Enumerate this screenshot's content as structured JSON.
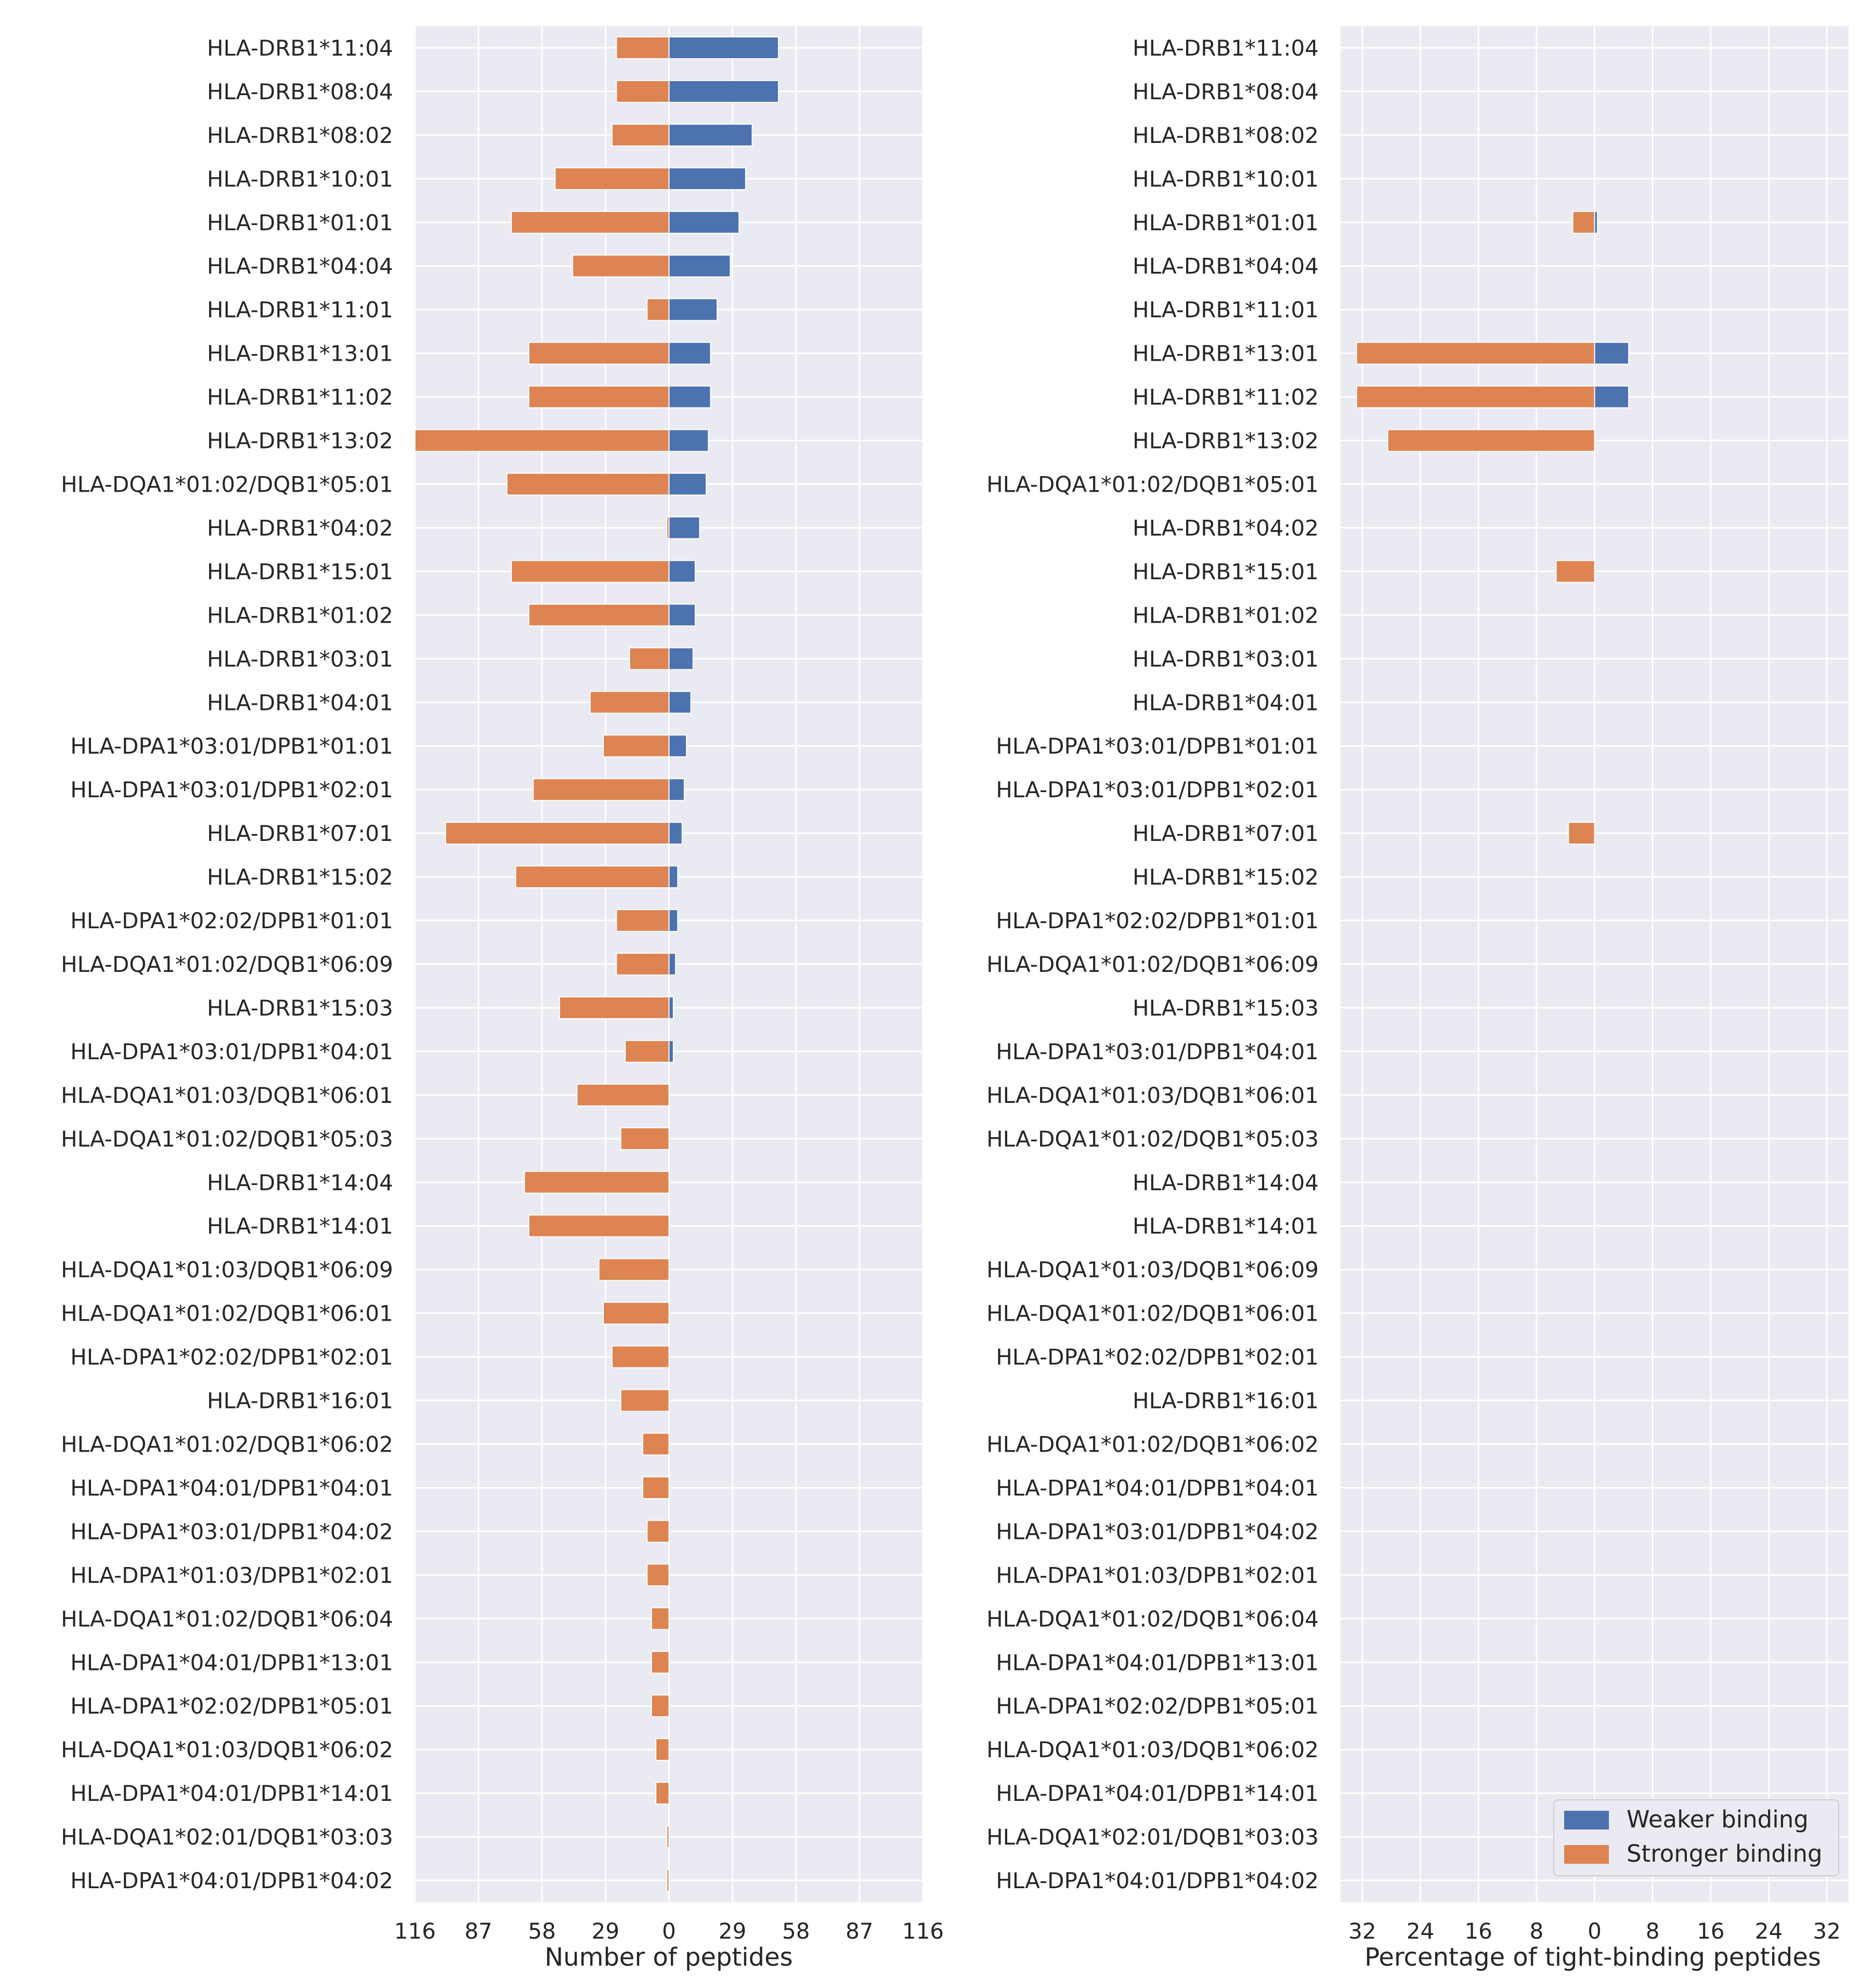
{
  "chart_data": [
    {
      "type": "bar",
      "orientation": "horizontal-diverging",
      "xlabel": "Number of peptides",
      "xticks": [
        "116",
        "87",
        "58",
        "29",
        "0",
        "29",
        "58",
        "87",
        "116"
      ],
      "xlim": [
        -116,
        116
      ],
      "grid": true,
      "categories": [
        "HLA-DRB1*11:04",
        "HLA-DRB1*08:04",
        "HLA-DRB1*08:02",
        "HLA-DRB1*10:01",
        "HLA-DRB1*01:01",
        "HLA-DRB1*04:04",
        "HLA-DRB1*11:01",
        "HLA-DRB1*13:01",
        "HLA-DRB1*11:02",
        "HLA-DRB1*13:02",
        "HLA-DQA1*01:02/DQB1*05:01",
        "HLA-DRB1*04:02",
        "HLA-DRB1*15:01",
        "HLA-DRB1*01:02",
        "HLA-DRB1*03:01",
        "HLA-DRB1*04:01",
        "HLA-DPA1*03:01/DPB1*01:01",
        "HLA-DPA1*03:01/DPB1*02:01",
        "HLA-DRB1*07:01",
        "HLA-DRB1*15:02",
        "HLA-DPA1*02:02/DPB1*01:01",
        "HLA-DQA1*01:02/DQB1*06:09",
        "HLA-DRB1*15:03",
        "HLA-DPA1*03:01/DPB1*04:01",
        "HLA-DQA1*01:03/DQB1*06:01",
        "HLA-DQA1*01:02/DQB1*05:03",
        "HLA-DRB1*14:04",
        "HLA-DRB1*14:01",
        "HLA-DQA1*01:03/DQB1*06:09",
        "HLA-DQA1*01:02/DQB1*06:01",
        "HLA-DPA1*02:02/DPB1*02:01",
        "HLA-DRB1*16:01",
        "HLA-DQA1*01:02/DQB1*06:02",
        "HLA-DPA1*04:01/DPB1*04:01",
        "HLA-DPA1*03:01/DPB1*04:02",
        "HLA-DPA1*01:03/DPB1*02:01",
        "HLA-DQA1*01:02/DQB1*06:04",
        "HLA-DPA1*04:01/DPB1*13:01",
        "HLA-DPA1*02:02/DPB1*05:01",
        "HLA-DQA1*01:03/DQB1*06:02",
        "HLA-DPA1*04:01/DPB1*14:01",
        "HLA-DQA1*02:01/DQB1*03:03",
        "HLA-DPA1*04:01/DPB1*04:02"
      ],
      "series": [
        {
          "name": "Weaker binding",
          "side": "right",
          "color": "#4c72b0",
          "values": [
            50,
            50,
            38,
            35,
            32,
            28,
            22,
            19,
            19,
            18,
            17,
            14,
            12,
            12,
            11,
            10,
            8,
            7,
            6,
            4,
            4,
            3,
            2,
            2,
            0,
            0,
            0,
            0,
            0,
            0,
            0,
            0,
            0,
            0,
            0,
            0,
            0,
            0,
            0,
            0,
            0,
            0,
            0
          ]
        },
        {
          "name": "Stronger binding",
          "side": "left",
          "color": "#dd8452",
          "values": [
            24,
            24,
            26,
            52,
            72,
            44,
            10,
            64,
            64,
            116,
            74,
            1,
            72,
            64,
            18,
            36,
            30,
            62,
            102,
            70,
            24,
            24,
            50,
            20,
            42,
            22,
            66,
            64,
            32,
            30,
            26,
            22,
            12,
            12,
            10,
            10,
            8,
            8,
            8,
            6,
            6,
            1,
            1
          ]
        }
      ]
    },
    {
      "type": "bar",
      "orientation": "horizontal-diverging",
      "xlabel": "Percentage of tight-binding peptides",
      "xticks": [
        "32",
        "24",
        "16",
        "8",
        "0",
        "8",
        "16",
        "24",
        "32"
      ],
      "xlim": [
        -35,
        35
      ],
      "grid": true,
      "legend_position": "lower-right",
      "legend": [
        "Weaker binding",
        "Stronger binding"
      ],
      "series": [
        {
          "name": "Weaker binding",
          "side": "right",
          "color": "#4c72b0",
          "values": [
            0,
            0,
            0,
            0,
            0.4,
            0,
            0,
            4.7,
            4.7,
            0,
            0,
            0,
            0,
            0,
            0,
            0,
            0,
            0,
            0,
            0,
            0,
            0,
            0,
            0,
            0,
            0,
            0,
            0,
            0,
            0,
            0,
            0,
            0,
            0,
            0,
            0,
            0,
            0,
            0,
            0,
            0,
            0,
            0
          ]
        },
        {
          "name": "Stronger binding",
          "side": "left",
          "color": "#dd8452",
          "values": [
            0,
            0,
            0,
            0,
            3,
            0,
            0,
            32.8,
            32.8,
            28.5,
            0,
            0,
            5.3,
            0,
            0,
            0,
            0,
            0,
            3.6,
            0,
            0,
            0,
            0,
            0,
            0,
            0,
            0,
            0,
            0,
            0,
            0,
            0,
            0,
            0,
            0,
            0,
            0,
            0,
            0,
            0,
            0,
            0,
            0
          ]
        }
      ]
    }
  ]
}
